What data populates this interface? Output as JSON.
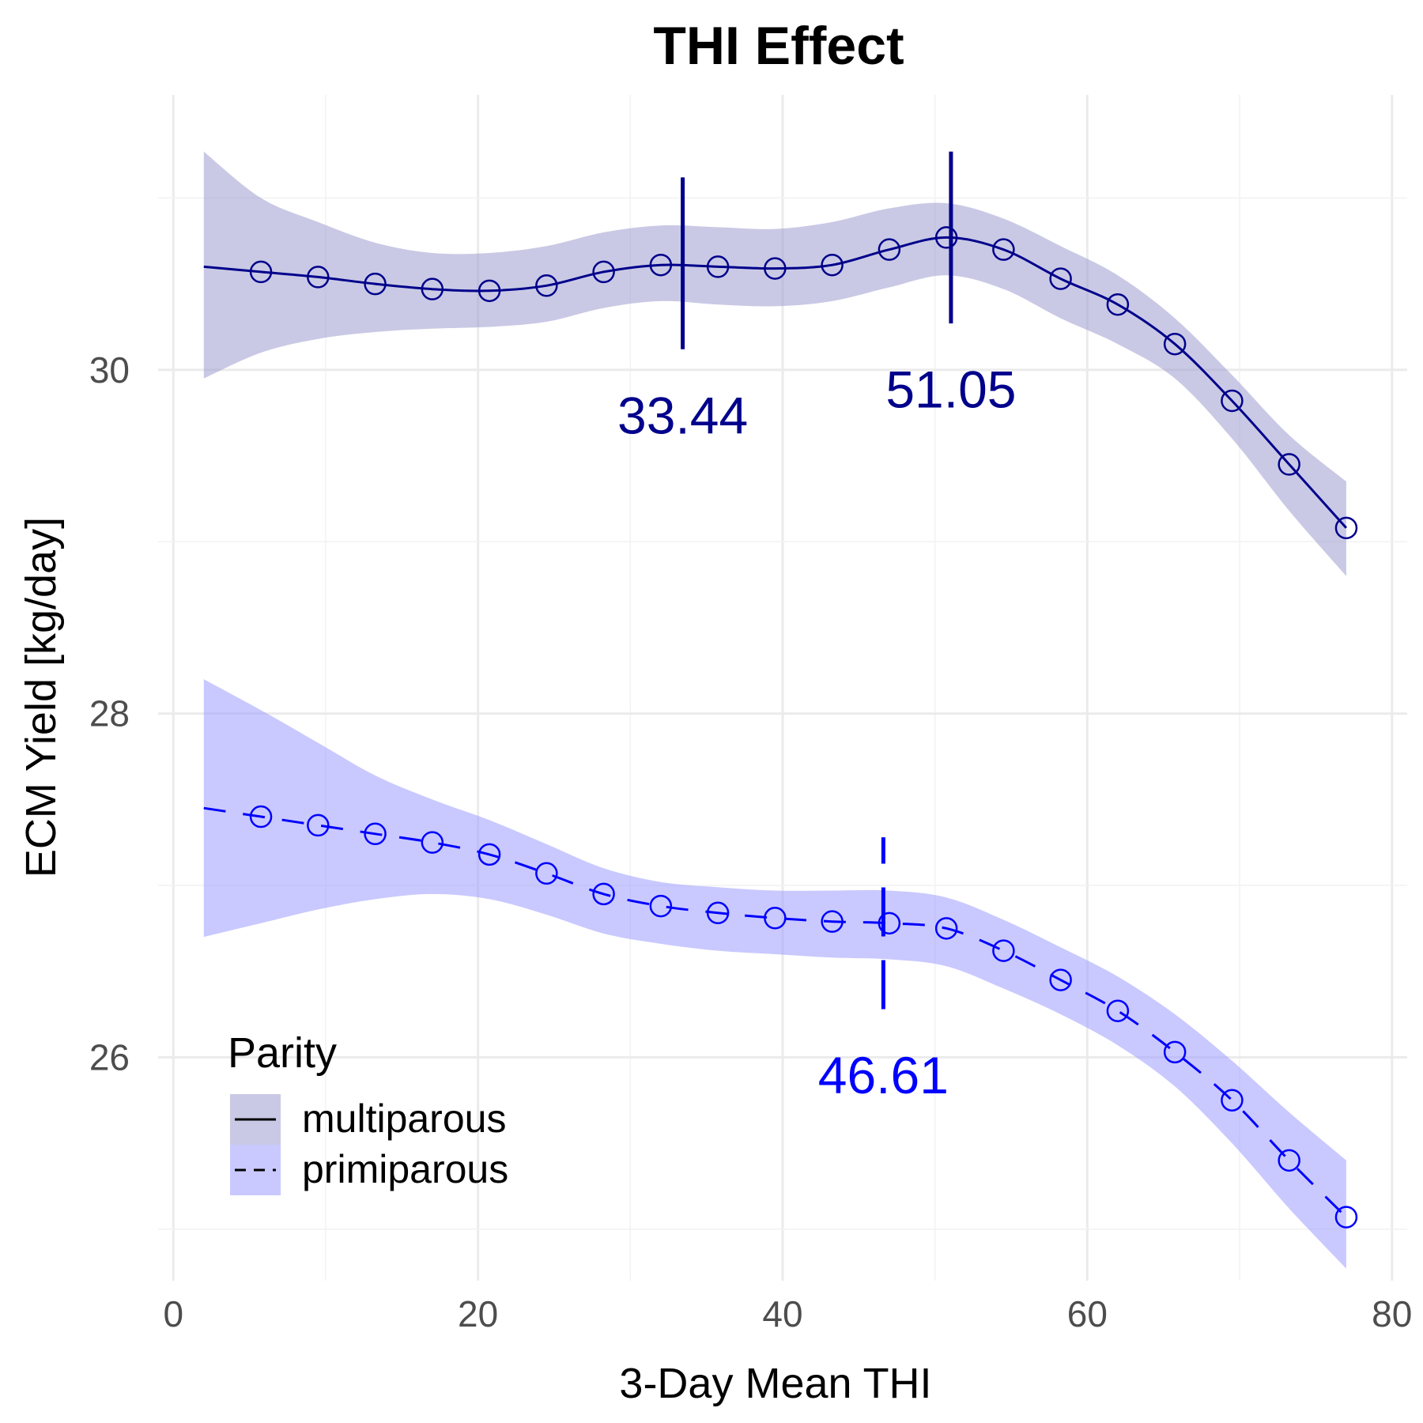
{
  "chart_data": {
    "type": "line",
    "title": "THI Effect",
    "xlabel": "3-Day Mean THI",
    "ylabel": "ECM Yield [kg/day]",
    "xlim": [
      -1,
      81
    ],
    "ylim": [
      24.7,
      31.6
    ],
    "x_ticks": [
      0,
      20,
      40,
      60,
      80
    ],
    "x_tick_labels": [
      "0",
      "20",
      "40",
      "60",
      "80"
    ],
    "y_ticks": [
      26,
      28,
      30
    ],
    "y_tick_labels": [
      "26",
      "28",
      "30"
    ],
    "grid": true,
    "legend": {
      "title": "Parity",
      "position": "bottom-left inside",
      "entries": [
        "multiparous",
        "primiparous"
      ]
    },
    "series": [
      {
        "name": "multiparous",
        "color": "#00008B",
        "band_color": "#9C9CCF",
        "line_style": "solid",
        "x": [
          2.0,
          5.75,
          9.5,
          13.25,
          17.0,
          20.75,
          24.5,
          28.25,
          32.0,
          35.75,
          39.5,
          43.25,
          47.0,
          50.75,
          54.5,
          58.25,
          62.0,
          65.75,
          69.5,
          73.25,
          77.0
        ],
        "y": [
          30.6,
          30.57,
          30.54,
          30.5,
          30.47,
          30.46,
          30.49,
          30.57,
          30.61,
          30.6,
          30.59,
          30.61,
          30.7,
          30.77,
          30.7,
          30.53,
          30.38,
          30.15,
          29.82,
          29.45,
          29.08
        ],
        "markers_x": [
          5.75,
          9.5,
          13.25,
          17.0,
          20.75,
          24.5,
          28.25,
          32.0,
          35.75,
          39.5,
          43.25,
          47.0,
          50.75,
          54.5,
          58.25,
          62.0,
          65.75,
          69.5,
          73.25,
          77.0
        ],
        "upper": [
          31.27,
          31.0,
          30.86,
          30.74,
          30.68,
          30.68,
          30.72,
          30.8,
          30.84,
          30.83,
          30.82,
          30.86,
          30.94,
          30.97,
          30.88,
          30.72,
          30.55,
          30.3,
          29.97,
          29.62,
          29.35
        ],
        "lower": [
          29.95,
          30.1,
          30.18,
          30.22,
          30.24,
          30.25,
          30.28,
          30.36,
          30.4,
          30.38,
          30.37,
          30.4,
          30.48,
          30.55,
          30.47,
          30.3,
          30.15,
          29.95,
          29.6,
          29.18,
          28.8
        ]
      },
      {
        "name": "primiparous",
        "color": "#0000FF",
        "band_color": "#9C9CFF",
        "line_style": "dashed",
        "x": [
          2.0,
          5.75,
          9.5,
          13.25,
          17.0,
          20.75,
          24.5,
          28.25,
          32.0,
          35.75,
          39.5,
          43.25,
          47.0,
          50.75,
          54.5,
          58.25,
          62.0,
          65.75,
          69.5,
          73.25,
          77.0
        ],
        "y": [
          27.45,
          27.4,
          27.35,
          27.3,
          27.25,
          27.18,
          27.07,
          26.95,
          26.88,
          26.84,
          26.81,
          26.79,
          26.78,
          26.75,
          26.62,
          26.45,
          26.27,
          26.03,
          25.75,
          25.4,
          25.07
        ],
        "markers_x": [
          5.75,
          9.5,
          13.25,
          17.0,
          20.75,
          24.5,
          28.25,
          32.0,
          35.75,
          39.5,
          43.25,
          47.0,
          50.75,
          54.5,
          58.25,
          62.0,
          65.75,
          69.5,
          73.25,
          77.0
        ],
        "upper": [
          28.2,
          28.02,
          27.83,
          27.64,
          27.5,
          27.38,
          27.24,
          27.1,
          27.02,
          26.99,
          26.97,
          26.97,
          26.97,
          26.93,
          26.8,
          26.64,
          26.47,
          26.25,
          25.98,
          25.68,
          25.4
        ],
        "lower": [
          26.7,
          26.78,
          26.86,
          26.92,
          26.95,
          26.92,
          26.83,
          26.72,
          26.66,
          26.62,
          26.6,
          26.58,
          26.57,
          26.53,
          26.4,
          26.25,
          26.07,
          25.83,
          25.5,
          25.12,
          24.77
        ]
      }
    ],
    "thresholds": [
      {
        "x": 33.44,
        "label": "33.44",
        "y_low": 30.12,
        "y_high": 31.12,
        "label_y": 29.63,
        "color": "#00008B",
        "line_style": "solid"
      },
      {
        "x": 51.05,
        "label": "51.05",
        "y_low": 30.27,
        "y_high": 31.27,
        "label_y": 29.78,
        "color": "#00008B",
        "line_style": "solid"
      },
      {
        "x": 46.61,
        "label": "46.61",
        "y_low": 26.28,
        "y_high": 27.28,
        "label_y": 25.79,
        "color": "#0000FF",
        "line_style": "dashed"
      }
    ]
  }
}
